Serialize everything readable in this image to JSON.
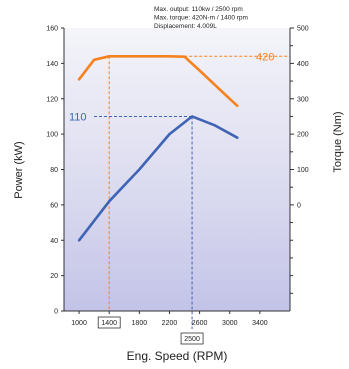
{
  "chart_data": {
    "type": "line",
    "specs": [
      "Max. output: 110kw / 2500 rpm",
      "Max. torque: 420N-m / 1400 rpm",
      "Displacement: 4.009L"
    ],
    "xlabel": "Eng. Speed (RPM)",
    "ylabel_left": "Power (kW)",
    "ylabel_right": "Torque (Nm)",
    "xlim": [
      800,
      3800
    ],
    "x_ticks": [
      1000,
      1400,
      1800,
      2200,
      2600,
      3000,
      3400
    ],
    "x_ticks_labels": [
      "1000",
      "1400",
      "1800",
      "2200",
      "2600",
      "3000",
      "3400"
    ],
    "highlight_x_labels": [
      "1400",
      "2500"
    ],
    "ylim_left": [
      0,
      160
    ],
    "y_ticks_left": [
      0,
      20,
      40,
      60,
      80,
      100,
      120,
      140,
      160
    ],
    "y_ticks_left_labels": [
      "0",
      "20",
      "40",
      "60",
      "80",
      "100",
      "120",
      "140",
      "160"
    ],
    "ylim_right": [
      -300,
      500
    ],
    "y_ticks_right": [
      0,
      100,
      200,
      300,
      400,
      500
    ],
    "y_ticks_right_labels": [
      "0",
      "100",
      "200",
      "300",
      "400",
      "500"
    ],
    "series": [
      {
        "axis": "right",
        "color": "#f5821f",
        "x": [
          1000,
          1200,
          1400,
          1800,
          2200,
          2400,
          2600,
          3000,
          3100
        ],
        "y": [
          355,
          410,
          420,
          420,
          420,
          419,
          380,
          300,
          280
        ]
      },
      {
        "axis": "left",
        "color": "#3f63b5",
        "x": [
          1000,
          1400,
          1800,
          2200,
          2500,
          2800,
          3100
        ],
        "y": [
          40,
          62,
          80,
          100,
          110,
          105,
          98
        ]
      }
    ],
    "peak_labels": [
      {
        "text": "420",
        "axis": "right",
        "x": 1400,
        "y": 420,
        "color": "#f5821f"
      },
      {
        "text": "110",
        "axis": "left",
        "x": 2500,
        "y": 110,
        "color": "#3f63b5"
      }
    ]
  }
}
